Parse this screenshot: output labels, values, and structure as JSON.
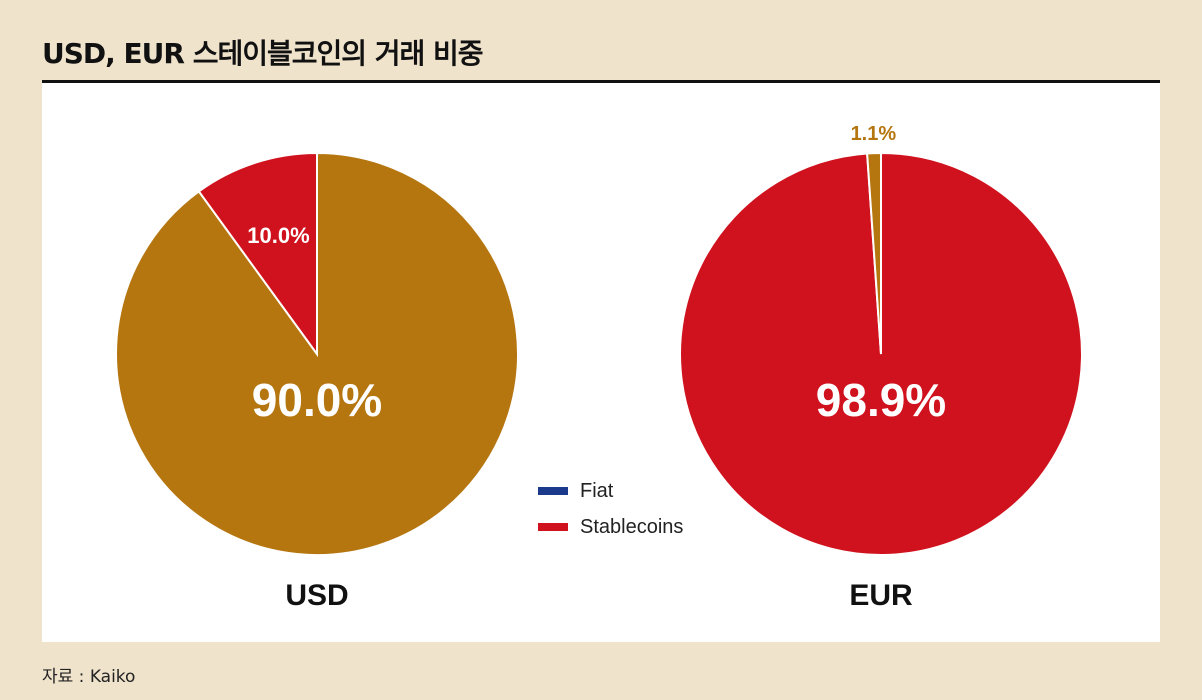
{
  "title": "USD, EUR 스테이블코인의 거래 비중",
  "source": "자료 : Kaiko",
  "colors": {
    "fiat_legend": "#1c3a8c",
    "stablecoins": "#d0121e",
    "usd_major": "#b57610",
    "eur_minor": "#b57610",
    "label_white": "#ffffff",
    "label_gold": "#b57610"
  },
  "legend": [
    {
      "label": "Fiat",
      "color": "#1c3a8c"
    },
    {
      "label": "Stablecoins",
      "color": "#d0121e"
    }
  ],
  "chart_data": [
    {
      "type": "pie",
      "name": "USD",
      "slices": [
        {
          "value": 90.0,
          "label": "90.0%",
          "color": "#b57610"
        },
        {
          "value": 10.0,
          "label": "10.0%",
          "color": "#d0121e"
        }
      ]
    },
    {
      "type": "pie",
      "name": "EUR",
      "slices": [
        {
          "value": 98.9,
          "label": "98.9%",
          "color": "#d0121e"
        },
        {
          "value": 1.1,
          "label": "1.1%",
          "color": "#b57610"
        }
      ]
    }
  ]
}
